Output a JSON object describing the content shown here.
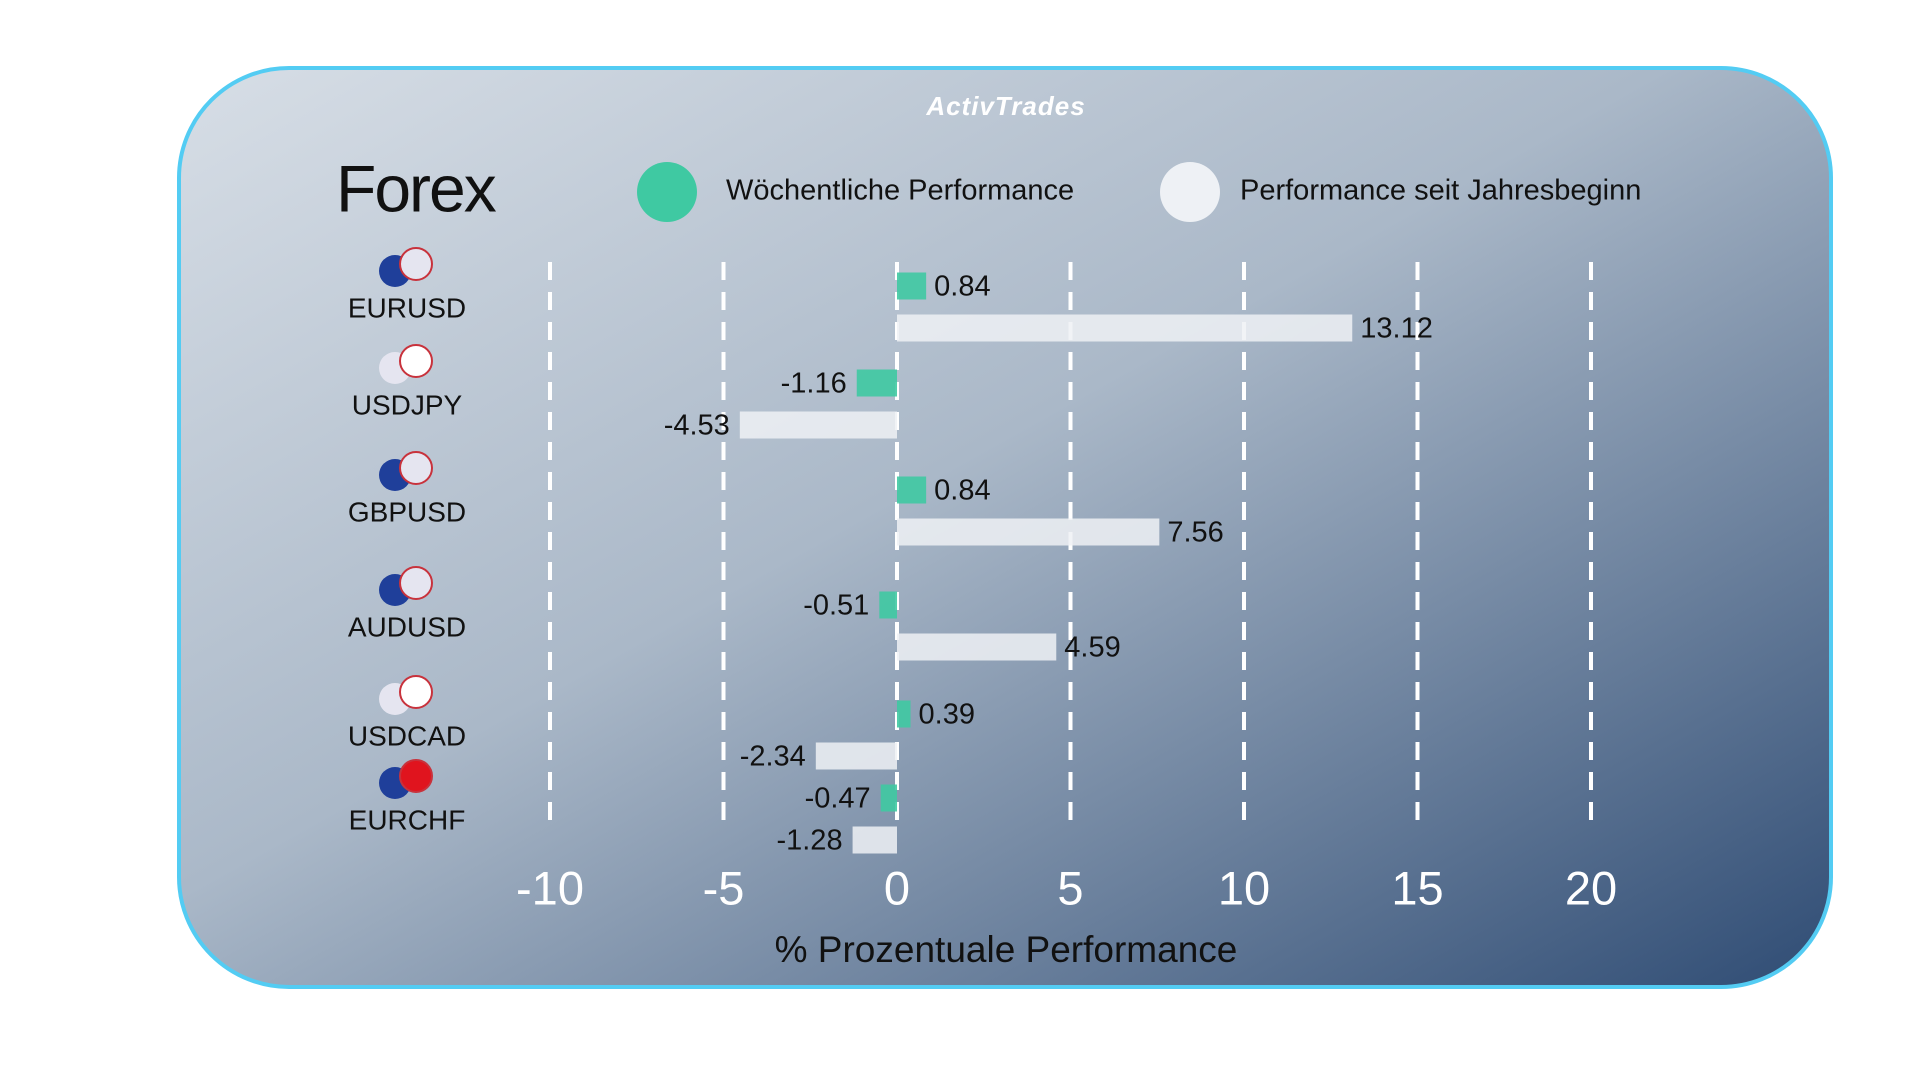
{
  "chart_data": {
    "type": "bar",
    "orientation": "horizontal",
    "brand": "ActivTrades",
    "title": "Forex",
    "xlabel": "% Prozentuale Performance",
    "categories": [
      "EURUSD",
      "USDJPY",
      "GBPUSD",
      "AUDUSD",
      "USDCAD",
      "EURCHF"
    ],
    "series": [
      {
        "name": "Wöchentliche Performance",
        "color": "#3fc9a2",
        "values": [
          0.84,
          -1.16,
          0.84,
          -0.51,
          0.39,
          -0.47
        ]
      },
      {
        "name": "Performance seit Jahresbeginn",
        "color": "#eef1f5",
        "values": [
          13.12,
          -4.53,
          7.56,
          4.59,
          -2.34,
          -1.28
        ]
      }
    ],
    "xlim": [
      -10,
      20
    ],
    "xticks": [
      -10,
      -5,
      0,
      5,
      10,
      15,
      20
    ],
    "grid": true
  }
}
